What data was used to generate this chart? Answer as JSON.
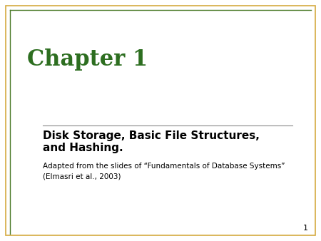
{
  "background_color": "#ffffff",
  "border_outer_color": "#d4aa40",
  "border_inner_color": "#4a7a28",
  "chapter_title": "Chapter 1",
  "chapter_title_color": "#2d6e20",
  "chapter_fontsize": 22,
  "subtitle_line1": "Disk Storage, Basic File Structures,",
  "subtitle_line2": "and Hashing.",
  "subtitle_color": "#000000",
  "subtitle_fontsize": 11,
  "adapted_text_line1": "Adapted from the slides of “Fundamentals of Database Systems”",
  "adapted_text_line2": "(Elmasri et al., 2003)",
  "adapted_color": "#000000",
  "adapted_fontsize": 7.5,
  "page_number": "1",
  "page_number_color": "#000000",
  "page_number_fontsize": 8,
  "separator_color": "#888888",
  "border_outer_lw": 1.2,
  "border_inner_lw": 1.0
}
